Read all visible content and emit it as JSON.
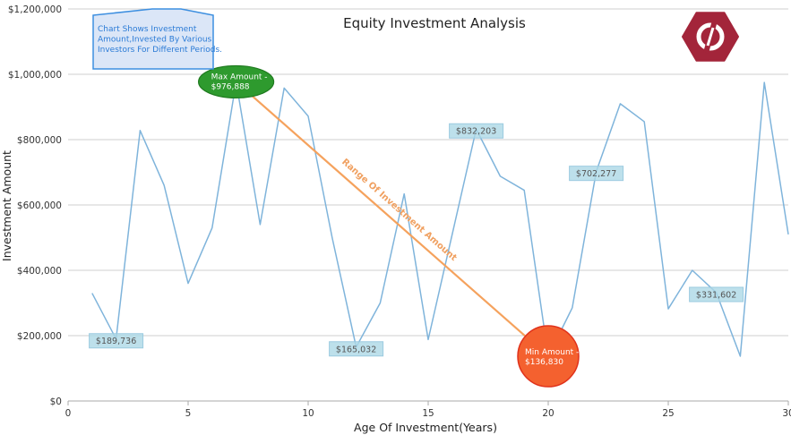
{
  "chart_data": {
    "type": "line",
    "title": "Equity Investment Analysis",
    "xlabel": "Age Of Investment(Years)",
    "ylabel": "Investment Amount",
    "xlim": [
      0,
      30
    ],
    "ylim": [
      0,
      1200000
    ],
    "x_ticks": [
      "0",
      "5",
      "10",
      "15",
      "20",
      "25",
      "30"
    ],
    "y_ticks": [
      "$0",
      "$200,000",
      "$400,000",
      "$600,000",
      "$800,000",
      "$1,000,000",
      "$1,200,000"
    ],
    "grid": "horizontal",
    "series": [
      {
        "color": "#7fb4db",
        "points": [
          [
            1,
            330000
          ],
          [
            2,
            189736
          ],
          [
            3,
            828000
          ],
          [
            4,
            660000
          ],
          [
            5,
            360000
          ],
          [
            6,
            530000
          ],
          [
            7,
            976888
          ],
          [
            8,
            540000
          ],
          [
            9,
            958000
          ],
          [
            10,
            872000
          ],
          [
            11,
            500000
          ],
          [
            12,
            165032
          ],
          [
            13,
            300000
          ],
          [
            14,
            634000
          ],
          [
            15,
            188000
          ],
          [
            16,
            510000
          ],
          [
            17,
            832203
          ],
          [
            18,
            688000
          ],
          [
            19,
            645000
          ],
          [
            20,
            136830
          ],
          [
            21,
            285000
          ],
          [
            22,
            702277
          ],
          [
            23,
            910000
          ],
          [
            24,
            855000
          ],
          [
            25,
            282000
          ],
          [
            26,
            400000
          ],
          [
            27,
            331602
          ],
          [
            28,
            137000
          ],
          [
            29,
            975000
          ],
          [
            30,
            510000
          ]
        ]
      }
    ],
    "annotations": [
      {
        "x": 2,
        "y": 189736,
        "text": "$189,736"
      },
      {
        "x": 12,
        "y": 165032,
        "text": "$165,032"
      },
      {
        "x": 17,
        "y": 832203,
        "text": "$832,203"
      },
      {
        "x": 22,
        "y": 702277,
        "text": "$702,277"
      },
      {
        "x": 27,
        "y": 331602,
        "text": "$331,602"
      }
    ],
    "max_point": {
      "x": 7,
      "y": 976888,
      "line1": "Max Amount -",
      "line2": "$976,888",
      "color": "#2e9a2e"
    },
    "min_point": {
      "x": 20,
      "y": 136830,
      "line1": "Min Amount -",
      "line2": "$136,830",
      "color": "#f4612f"
    },
    "range_label": "Range Of Investment Amount",
    "range_color": "#f5a25d",
    "callout": {
      "lines": [
        "Chart Shows Investment",
        "Amount,Invested By Various",
        "Investors For Different Periods."
      ],
      "fill": "#dbe6f7",
      "border": "#3d8fe0"
    },
    "label_box_color": "#add8e6"
  },
  "logo": {
    "name": "logo-icon",
    "color": "#a3253a"
  }
}
